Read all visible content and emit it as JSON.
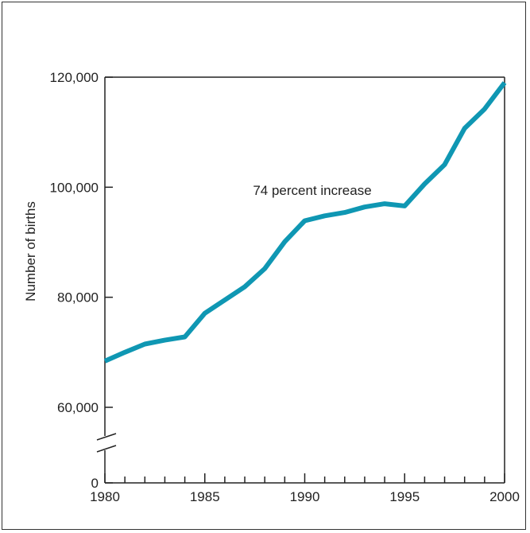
{
  "chart_data": {
    "type": "line",
    "title": "",
    "xlabel": "",
    "ylabel": "Number of births",
    "annotation": "74 percent increase",
    "x_range": [
      1980,
      2000
    ],
    "y_range": [
      0,
      120000
    ],
    "y_axis_break": true,
    "grid": false,
    "x_ticks": [
      1980,
      1985,
      1990,
      1995,
      2000
    ],
    "x_tick_labels": [
      "1980",
      "1985",
      "1990",
      "1995",
      "2000"
    ],
    "y_ticks": [
      0,
      60000,
      80000,
      100000,
      120000
    ],
    "y_tick_labels": [
      "0",
      "60,000",
      "80,000",
      "100,000",
      "120,000"
    ],
    "series_color": "#0f97b3",
    "series": [
      {
        "x": [
          1980,
          1981,
          1982,
          1983,
          1984,
          1985,
          1986,
          1987,
          1988,
          1989,
          1990,
          1991,
          1992,
          1993,
          1994,
          1995,
          1996,
          1997,
          1998,
          1999,
          2000
        ],
        "values": [
          68400,
          70000,
          71500,
          72200,
          72800,
          77100,
          79500,
          81900,
          85200,
          90100,
          93900,
          94800,
          95400,
          96400,
          97000,
          96600,
          100600,
          104100,
          110700,
          114200,
          119000
        ]
      }
    ]
  }
}
